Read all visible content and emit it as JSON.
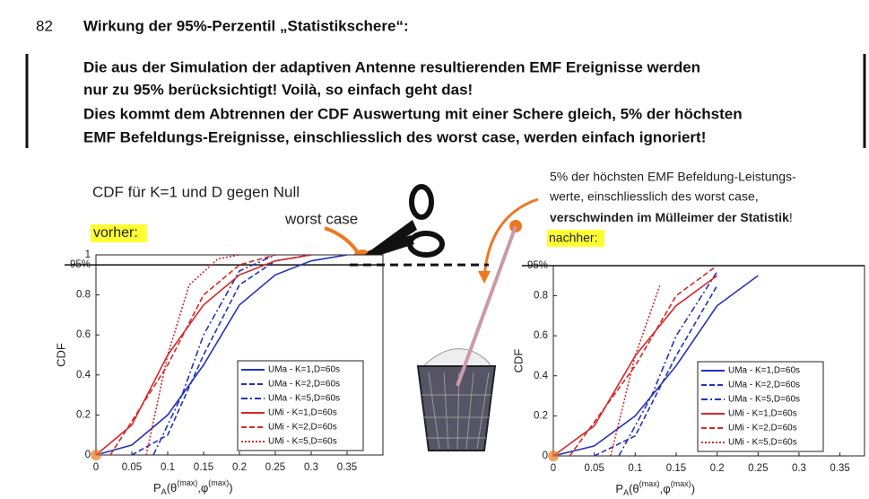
{
  "line_number": "82",
  "heading": "Wirkung der 95%-Perzentil „Statistikschere“:",
  "paragraph": [
    "Die aus der Simulation der adaptiven Antenne resultierenden EMF Ereignisse werden",
    "nur zu 95% berücksichtigt! Voilà, so einfach geht das!",
    "Dies kommt dem Abtrennen der CDF Auswertung mit einer Schere gleich, 5% der höchsten",
    "EMF Befeldungs-Ereignisse, einschliesslich des worst case, werden einfach ignoriert!"
  ],
  "left_panel": {
    "caption": "CDF für K=1 und D gegen Null",
    "highlight": "vorher:",
    "annotation": "worst case"
  },
  "right_panel": {
    "note": [
      "5% der höchsten EMF Befeldung-Leistungs-",
      "werte, einschliesslich des worst case,"
    ],
    "note_bold": "verschwinden im Mülleimer der Statistik",
    "note_end": "!",
    "highlight": "nachher:"
  },
  "chart_data": [
    {
      "type": "line",
      "ylabel": "CDF",
      "xlabel": [
        {
          "text": "P"
        },
        {
          "text": "A",
          "style": "sub"
        },
        {
          "text": "(θ"
        },
        {
          "text": "(max)",
          "style": "sup"
        },
        {
          "text": ",φ"
        },
        {
          "text": "(max)",
          "style": "sup"
        },
        {
          "text": ")"
        }
      ],
      "xlim": [
        0,
        0.4
      ],
      "ylim": [
        0,
        1
      ],
      "xticks": [
        0,
        0.05,
        0.1,
        0.15,
        0.2,
        0.25,
        0.3,
        0.35
      ],
      "yticks": [
        0,
        0.2,
        0.4,
        0.6,
        0.8,
        {
          "value": 0.95,
          "label": "95%"
        },
        1
      ],
      "series": [
        {
          "name": "UMa - K=1,D=60s",
          "color": "#2233bb",
          "dash": "solid",
          "x": [
            0,
            0.05,
            0.1,
            0.15,
            0.2,
            0.25,
            0.3,
            0.35
          ],
          "values": [
            0,
            0.05,
            0.2,
            0.45,
            0.75,
            0.9,
            0.97,
            1
          ]
        },
        {
          "name": "UMa - K=2,D=60s",
          "color": "#2233bb",
          "dash": "dashed",
          "x": [
            0.05,
            0.1,
            0.15,
            0.2,
            0.25,
            0.3
          ],
          "values": [
            0,
            0.1,
            0.5,
            0.85,
            0.97,
            1
          ]
        },
        {
          "name": "UMa - K=5,D=60s",
          "color": "#2233bb",
          "dash": "dashdot",
          "x": [
            0.08,
            0.12,
            0.15,
            0.2,
            0.25
          ],
          "values": [
            0,
            0.3,
            0.6,
            0.92,
            1
          ]
        },
        {
          "name": "UMi - K=1,D=60s",
          "color": "#d62728",
          "dash": "solid",
          "x": [
            0,
            0.05,
            0.1,
            0.15,
            0.2,
            0.25,
            0.3
          ],
          "values": [
            0,
            0.15,
            0.5,
            0.75,
            0.9,
            0.97,
            1
          ]
        },
        {
          "name": "UMi - K=2,D=60s",
          "color": "#d62728",
          "dash": "dashed",
          "x": [
            0.02,
            0.1,
            0.15,
            0.2,
            0.25
          ],
          "values": [
            0,
            0.45,
            0.8,
            0.95,
            1
          ]
        },
        {
          "name": "UMi - K=5,D=60s",
          "color": "#d62728",
          "dash": "dotted",
          "x": [
            0.07,
            0.1,
            0.13,
            0.17,
            0.2
          ],
          "values": [
            0,
            0.5,
            0.85,
            0.98,
            1
          ]
        }
      ]
    },
    {
      "type": "line",
      "ylabel": "CDF",
      "xlabel": [
        {
          "text": "P"
        },
        {
          "text": "A",
          "style": "sub"
        },
        {
          "text": "(θ"
        },
        {
          "text": "(max)",
          "style": "sup"
        },
        {
          "text": ",φ"
        },
        {
          "text": "(max)",
          "style": "sup"
        },
        {
          "text": ")"
        }
      ],
      "xlim": [
        0,
        0.38
      ],
      "ylim": [
        0,
        0.95
      ],
      "xticks": [
        0,
        0.05,
        0.1,
        0.15,
        0.2,
        0.25,
        0.3,
        0.35
      ],
      "yticks": [
        0,
        0.2,
        0.4,
        0.6,
        0.8,
        {
          "value": 0.95,
          "label": "95%"
        }
      ],
      "series": [
        {
          "name": "UMa - K=1,D=60s",
          "color": "#2233bb",
          "dash": "solid",
          "x": [
            0,
            0.05,
            0.1,
            0.15,
            0.2,
            0.25
          ],
          "values": [
            0,
            0.05,
            0.2,
            0.45,
            0.75,
            0.9
          ]
        },
        {
          "name": "UMa - K=2,D=60s",
          "color": "#2233bb",
          "dash": "dashed",
          "x": [
            0.05,
            0.1,
            0.15,
            0.2
          ],
          "values": [
            0,
            0.1,
            0.5,
            0.85
          ]
        },
        {
          "name": "UMa - K=5,D=60s",
          "color": "#2233bb",
          "dash": "dashdot",
          "x": [
            0.08,
            0.12,
            0.15,
            0.2
          ],
          "values": [
            0,
            0.3,
            0.6,
            0.92
          ]
        },
        {
          "name": "UMi - K=1,D=60s",
          "color": "#d62728",
          "dash": "solid",
          "x": [
            0,
            0.05,
            0.1,
            0.15,
            0.2
          ],
          "values": [
            0,
            0.15,
            0.5,
            0.75,
            0.9
          ]
        },
        {
          "name": "UMi - K=2,D=60s",
          "color": "#d62728",
          "dash": "dashed",
          "x": [
            0.02,
            0.1,
            0.15,
            0.2
          ],
          "values": [
            0,
            0.45,
            0.8,
            0.95
          ]
        },
        {
          "name": "UMi - K=5,D=60s",
          "color": "#d62728",
          "dash": "dotted",
          "x": [
            0.07,
            0.1,
            0.13
          ],
          "values": [
            0,
            0.5,
            0.85
          ]
        }
      ]
    }
  ]
}
